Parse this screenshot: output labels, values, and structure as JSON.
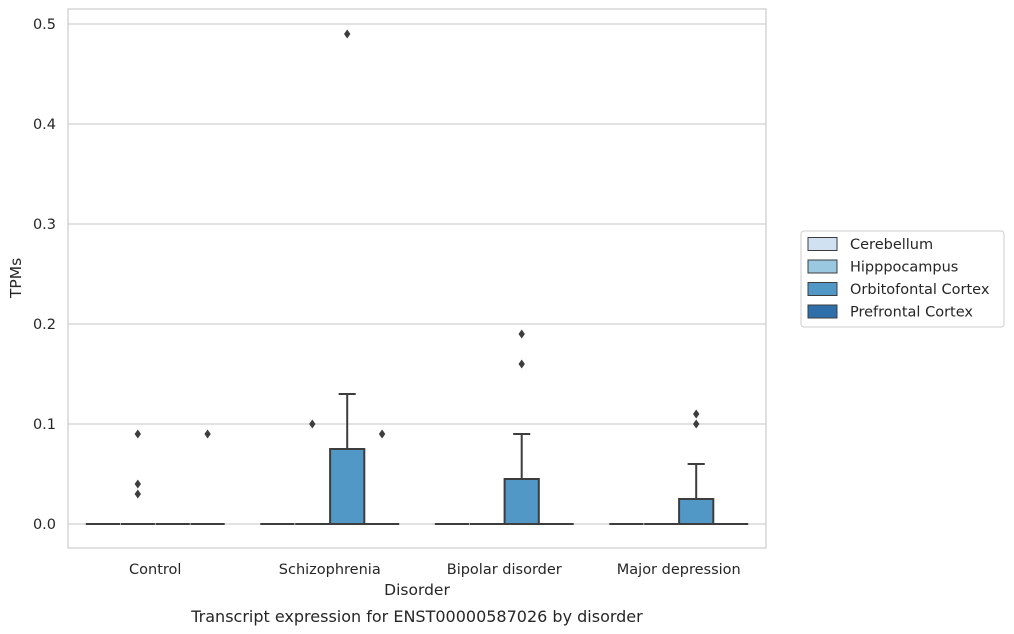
{
  "chart_data": {
    "type": "boxplot",
    "caption": "Transcript expression for ENST00000587026 by disorder",
    "xlabel": "Disorder",
    "ylabel": "TPMs",
    "ylim": [
      -0.024,
      0.515
    ],
    "yticks": [
      0.0,
      0.1,
      0.2,
      0.3,
      0.4,
      0.5
    ],
    "ytick_labels": [
      "0.0",
      "0.1",
      "0.2",
      "0.3",
      "0.4",
      "0.5"
    ],
    "grid": "horizontal",
    "legend_position": "right",
    "categories": [
      "Control",
      "Schizophrenia",
      "Bipolar disorder",
      "Major depression"
    ],
    "series": [
      {
        "name": "Cerebellum",
        "color": "#d0e1f2",
        "boxes": [
          {
            "category": "Control",
            "q1": 0,
            "median": 0,
            "q3": 0,
            "whisker_low": 0,
            "whisker_high": 0,
            "outliers": []
          },
          {
            "category": "Schizophrenia",
            "q1": 0,
            "median": 0,
            "q3": 0,
            "whisker_low": 0,
            "whisker_high": 0,
            "outliers": []
          },
          {
            "category": "Bipolar disorder",
            "q1": 0,
            "median": 0,
            "q3": 0,
            "whisker_low": 0,
            "whisker_high": 0,
            "outliers": []
          },
          {
            "category": "Major depression",
            "q1": 0,
            "median": 0,
            "q3": 0,
            "whisker_low": 0,
            "whisker_high": 0,
            "outliers": []
          }
        ]
      },
      {
        "name": "Hipppocampus",
        "color": "#9ac8e0",
        "boxes": [
          {
            "category": "Control",
            "q1": 0,
            "median": 0,
            "q3": 0,
            "whisker_low": 0,
            "whisker_high": 0,
            "outliers": [
              0.09,
              0.04,
              0.03
            ]
          },
          {
            "category": "Schizophrenia",
            "q1": 0,
            "median": 0,
            "q3": 0,
            "whisker_low": 0,
            "whisker_high": 0,
            "outliers": [
              0.1
            ]
          },
          {
            "category": "Bipolar disorder",
            "q1": 0,
            "median": 0,
            "q3": 0,
            "whisker_low": 0,
            "whisker_high": 0,
            "outliers": []
          },
          {
            "category": "Major depression",
            "q1": 0,
            "median": 0,
            "q3": 0,
            "whisker_low": 0,
            "whisker_high": 0,
            "outliers": []
          }
        ]
      },
      {
        "name": "Orbitofontal Cortex",
        "color": "#5298c6",
        "boxes": [
          {
            "category": "Control",
            "q1": 0,
            "median": 0,
            "q3": 0,
            "whisker_low": 0,
            "whisker_high": 0,
            "outliers": []
          },
          {
            "category": "Schizophrenia",
            "q1": 0,
            "median": 0,
            "q3": 0.075,
            "whisker_low": 0,
            "whisker_high": 0.13,
            "outliers": [
              0.49
            ]
          },
          {
            "category": "Bipolar disorder",
            "q1": 0,
            "median": 0,
            "q3": 0.045,
            "whisker_low": 0,
            "whisker_high": 0.09,
            "outliers": [
              0.19,
              0.16
            ]
          },
          {
            "category": "Major depression",
            "q1": 0,
            "median": 0,
            "q3": 0.025,
            "whisker_low": 0,
            "whisker_high": 0.06,
            "outliers": [
              0.11,
              0.1
            ]
          }
        ]
      },
      {
        "name": "Prefrontal Cortex",
        "color": "#2d6eab",
        "boxes": [
          {
            "category": "Control",
            "q1": 0,
            "median": 0,
            "q3": 0,
            "whisker_low": 0,
            "whisker_high": 0,
            "outliers": [
              0.09
            ]
          },
          {
            "category": "Schizophrenia",
            "q1": 0,
            "median": 0,
            "q3": 0,
            "whisker_low": 0,
            "whisker_high": 0,
            "outliers": [
              0.09
            ]
          },
          {
            "category": "Bipolar disorder",
            "q1": 0,
            "median": 0,
            "q3": 0,
            "whisker_low": 0,
            "whisker_high": 0,
            "outliers": []
          },
          {
            "category": "Major depression",
            "q1": 0,
            "median": 0,
            "q3": 0,
            "whisker_low": 0,
            "whisker_high": 0,
            "outliers": []
          }
        ]
      }
    ]
  }
}
